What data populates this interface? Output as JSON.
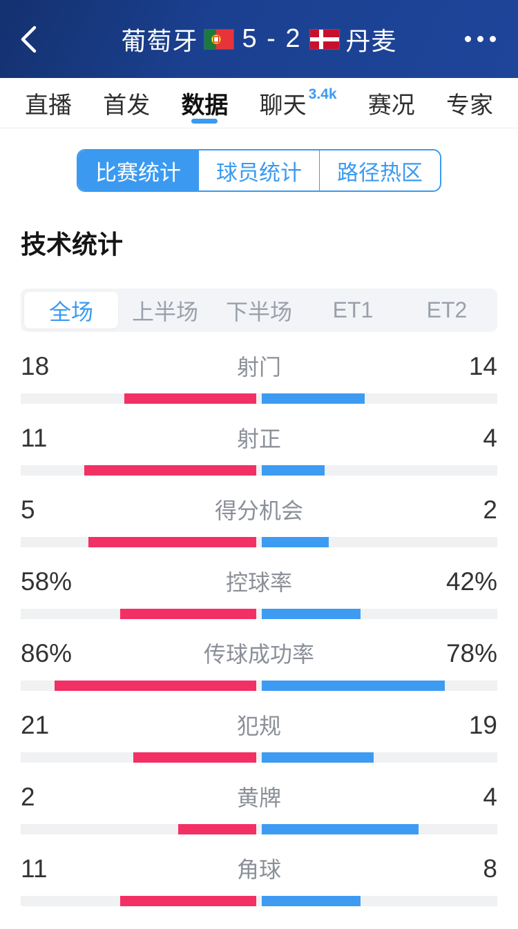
{
  "colors": {
    "accent": "#3b9af0",
    "home_bar": "#f23064",
    "away_bar": "#3e9bf2",
    "track": "#f0f1f3",
    "header_bg": "#1b4090"
  },
  "header": {
    "back_icon": "chevron-left",
    "home_team": "葡萄牙",
    "away_team": "丹麦",
    "score": "5 - 2",
    "home_flag": "portugal-flag",
    "away_flag": "denmark-flag",
    "menu_icon": "ellipsis"
  },
  "nav_tabs": {
    "items": [
      {
        "label": "直播",
        "active": false
      },
      {
        "label": "首发",
        "active": false
      },
      {
        "label": "数据",
        "active": true
      },
      {
        "label": "聊天",
        "badge": "3.4k",
        "active": false
      },
      {
        "label": "赛况",
        "active": false
      },
      {
        "label": "专家",
        "active": false
      }
    ]
  },
  "stat_tabs": {
    "items": [
      {
        "label": "比赛统计",
        "active": true
      },
      {
        "label": "球员统计",
        "active": false
      },
      {
        "label": "路径热区",
        "active": false
      }
    ]
  },
  "section_title": "技术统计",
  "period_tabs": {
    "items": [
      {
        "label": "全场",
        "active": true
      },
      {
        "label": "上半场",
        "active": false
      },
      {
        "label": "下半场",
        "active": false
      },
      {
        "label": "ET1",
        "active": false
      },
      {
        "label": "ET2",
        "active": false
      }
    ]
  },
  "chart_data": {
    "type": "bar",
    "title": "技术统计",
    "teams": [
      "葡萄牙",
      "丹麦"
    ],
    "legend_position": "none",
    "layout": "mirrored-horizontal-bars-from-center",
    "rows": [
      {
        "label": "射门",
        "home_display": "18",
        "away_display": "14",
        "home": 18,
        "away": 14,
        "percent": false
      },
      {
        "label": "射正",
        "home_display": "11",
        "away_display": "4",
        "home": 11,
        "away": 4,
        "percent": false
      },
      {
        "label": "得分机会",
        "home_display": "5",
        "away_display": "2",
        "home": 5,
        "away": 2,
        "percent": false
      },
      {
        "label": "控球率",
        "home_display": "58%",
        "away_display": "42%",
        "home": 58,
        "away": 42,
        "percent": true
      },
      {
        "label": "传球成功率",
        "home_display": "86%",
        "away_display": "78%",
        "home": 86,
        "away": 78,
        "percent": true
      },
      {
        "label": "犯规",
        "home_display": "21",
        "away_display": "19",
        "home": 21,
        "away": 19,
        "percent": false
      },
      {
        "label": "黄牌",
        "home_display": "2",
        "away_display": "4",
        "home": 2,
        "away": 4,
        "percent": false
      },
      {
        "label": "角球",
        "home_display": "11",
        "away_display": "8",
        "home": 11,
        "away": 8,
        "percent": false
      }
    ]
  }
}
